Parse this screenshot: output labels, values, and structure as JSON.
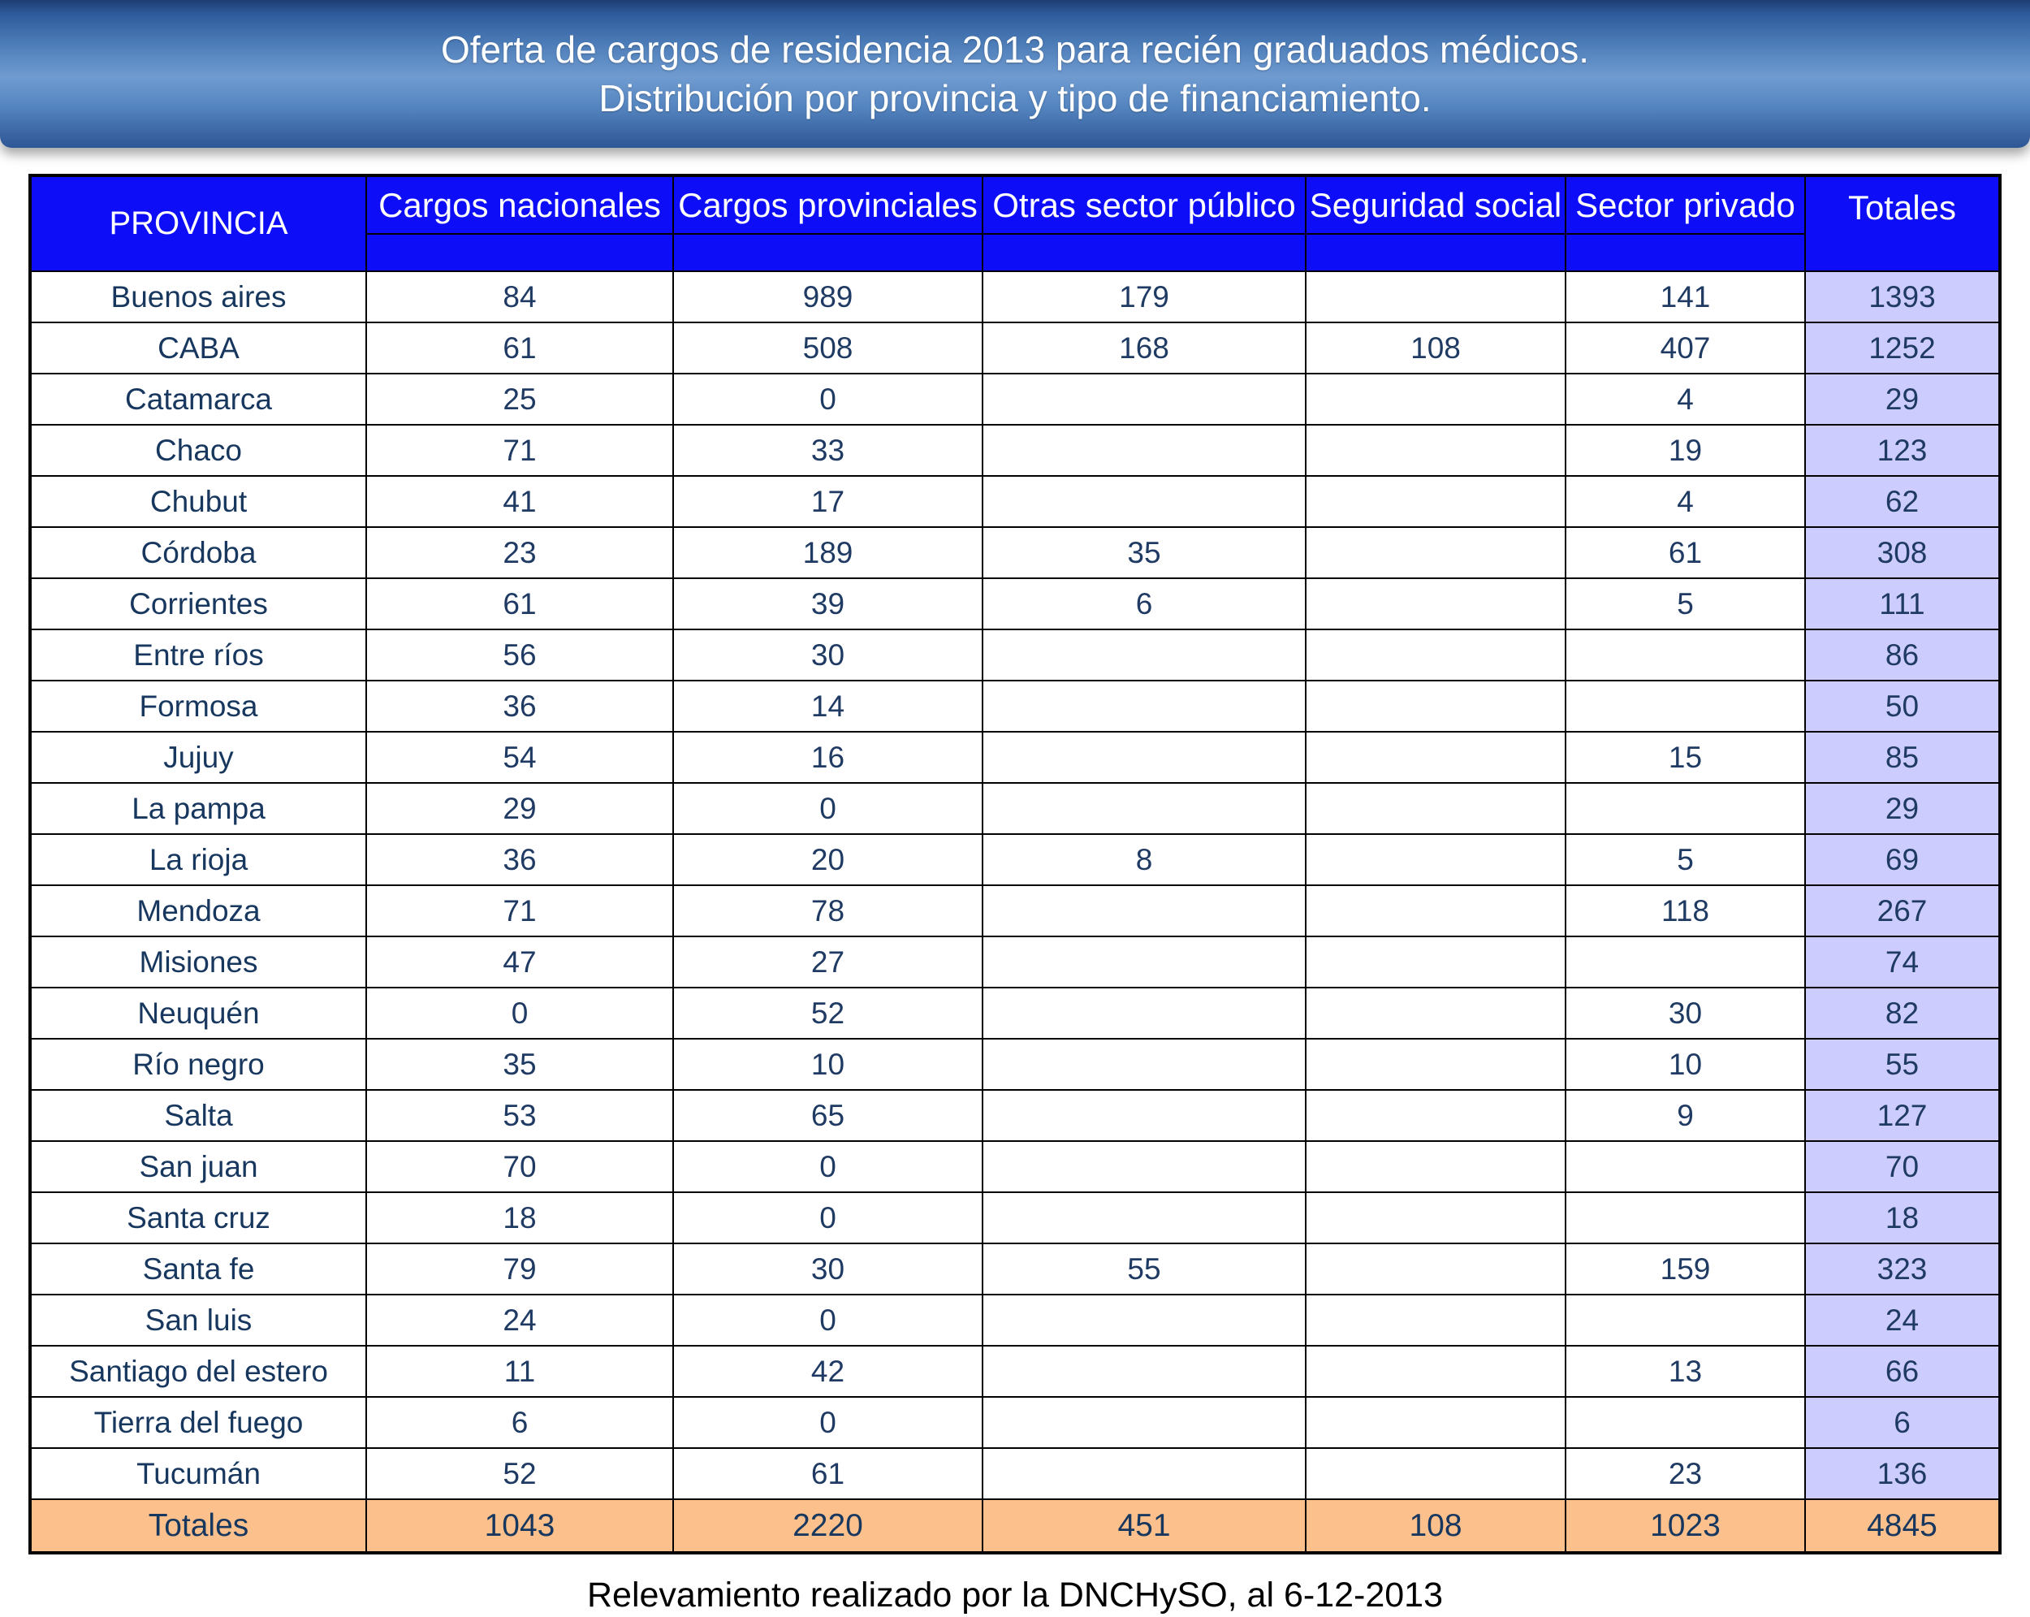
{
  "title": {
    "line1": "Oferta de cargos de residencia 2013 para recién graduados médicos.",
    "line2": "Distribución por provincia y tipo de financiamiento."
  },
  "footer": "Relevamiento realizado por la DNCHySO, al 6-12-2013",
  "colors": {
    "header_blue": "#0d0df8",
    "totals_column_lavender": "#ccccff",
    "totals_row_orange": "#fbc08c",
    "text_navy": "#17375e",
    "banner_blue": "#4a7ab6"
  },
  "chart_data": {
    "type": "table",
    "columns": [
      "PROVINCIA",
      "Cargos nacionales",
      "Cargos provinciales",
      "Otras sector público",
      "Seguridad social",
      "Sector privado",
      "Totales"
    ],
    "rows": [
      {
        "provincia": "Buenos aires",
        "values": [
          "84",
          "989",
          "179",
          "",
          "141"
        ],
        "total": "1393"
      },
      {
        "provincia": "CABA",
        "values": [
          "61",
          "508",
          "168",
          "108",
          "407"
        ],
        "total": "1252"
      },
      {
        "provincia": "Catamarca",
        "values": [
          "25",
          "0",
          "",
          "",
          "4"
        ],
        "total": "29"
      },
      {
        "provincia": "Chaco",
        "values": [
          "71",
          "33",
          "",
          "",
          "19"
        ],
        "total": "123"
      },
      {
        "provincia": "Chubut",
        "values": [
          "41",
          "17",
          "",
          "",
          "4"
        ],
        "total": "62"
      },
      {
        "provincia": "Córdoba",
        "values": [
          "23",
          "189",
          "35",
          "",
          "61"
        ],
        "total": "308"
      },
      {
        "provincia": "Corrientes",
        "values": [
          "61",
          "39",
          "6",
          "",
          "5"
        ],
        "total": "111"
      },
      {
        "provincia": "Entre ríos",
        "values": [
          "56",
          "30",
          "",
          "",
          ""
        ],
        "total": "86"
      },
      {
        "provincia": "Formosa",
        "values": [
          "36",
          "14",
          "",
          "",
          ""
        ],
        "total": "50"
      },
      {
        "provincia": "Jujuy",
        "values": [
          "54",
          "16",
          "",
          "",
          "15"
        ],
        "total": "85"
      },
      {
        "provincia": "La pampa",
        "values": [
          "29",
          "0",
          "",
          "",
          ""
        ],
        "total": "29"
      },
      {
        "provincia": "La rioja",
        "values": [
          "36",
          "20",
          "8",
          "",
          "5"
        ],
        "total": "69"
      },
      {
        "provincia": "Mendoza",
        "values": [
          "71",
          "78",
          "",
          "",
          "118"
        ],
        "total": "267"
      },
      {
        "provincia": "Misiones",
        "values": [
          "47",
          "27",
          "",
          "",
          ""
        ],
        "total": "74"
      },
      {
        "provincia": "Neuquén",
        "values": [
          "0",
          "52",
          "",
          "",
          "30"
        ],
        "total": "82"
      },
      {
        "provincia": "Río negro",
        "values": [
          "35",
          "10",
          "",
          "",
          "10"
        ],
        "total": "55"
      },
      {
        "provincia": "Salta",
        "values": [
          "53",
          "65",
          "",
          "",
          "9"
        ],
        "total": "127"
      },
      {
        "provincia": "San juan",
        "values": [
          "70",
          "0",
          "",
          "",
          ""
        ],
        "total": "70"
      },
      {
        "provincia": "Santa cruz",
        "values": [
          "18",
          "0",
          "",
          "",
          ""
        ],
        "total": "18"
      },
      {
        "provincia": "Santa fe",
        "values": [
          "79",
          "30",
          "55",
          "",
          "159"
        ],
        "total": "323"
      },
      {
        "provincia": "San luis",
        "values": [
          "24",
          "0",
          "",
          "",
          ""
        ],
        "total": "24"
      },
      {
        "provincia": "Santiago del estero",
        "values": [
          "11",
          "42",
          "",
          "",
          "13"
        ],
        "total": "66"
      },
      {
        "provincia": "Tierra del fuego",
        "values": [
          "6",
          "0",
          "",
          "",
          ""
        ],
        "total": "6"
      },
      {
        "provincia": "Tucumán",
        "values": [
          "52",
          "61",
          "",
          "",
          "23"
        ],
        "total": "136"
      }
    ],
    "totals": {
      "label": "Totales",
      "values": [
        "1043",
        "2220",
        "451",
        "108",
        "1023"
      ],
      "total": "4845"
    }
  }
}
